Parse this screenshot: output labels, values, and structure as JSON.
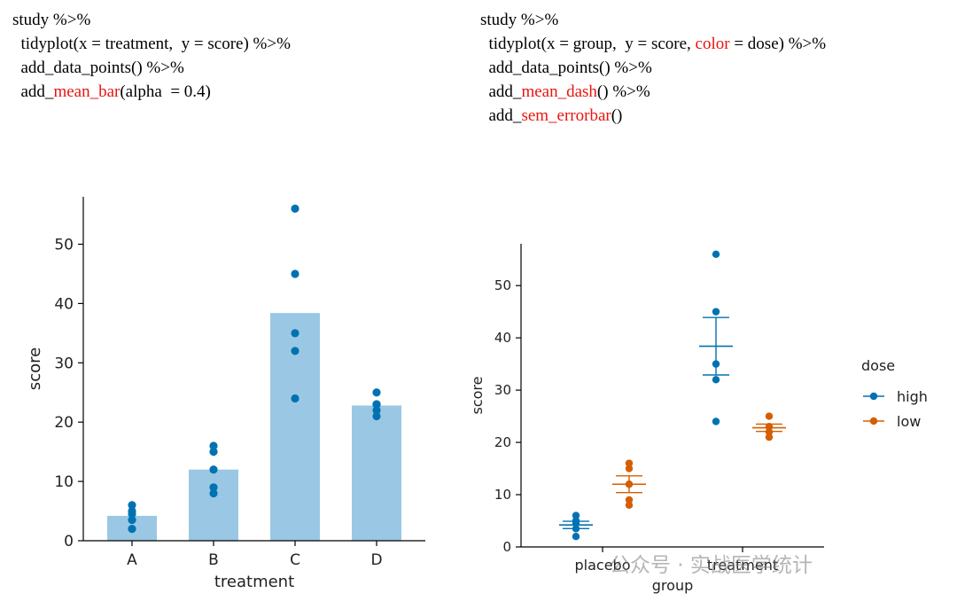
{
  "code_left": {
    "lines": [
      [
        {
          "t": "study %>%"
        }
      ],
      [
        {
          "t": "  tidyplot(x = treatment,  y = score) %>%"
        }
      ],
      [
        {
          "t": "  add_data_points() %>%"
        }
      ],
      [
        {
          "t": "  add_"
        },
        {
          "t": "mean_bar",
          "hl": true
        },
        {
          "t": "(alpha  = 0.4)"
        }
      ]
    ]
  },
  "code_right": {
    "lines": [
      [
        {
          "t": "study %>%"
        }
      ],
      [
        {
          "t": "  tidyplot(x = group,  y = score, "
        },
        {
          "t": "color",
          "hl": true
        },
        {
          "t": " = dose) %>%"
        }
      ],
      [
        {
          "t": "  add_data_points() %>%"
        }
      ],
      [
        {
          "t": "  add_"
        },
        {
          "t": "mean_dash",
          "hl": true
        },
        {
          "t": "() %>%"
        }
      ],
      [
        {
          "t": "  add_"
        },
        {
          "t": "sem_errorbar",
          "hl": true
        },
        {
          "t": "()"
        }
      ]
    ]
  },
  "colors": {
    "high": "#0072b2",
    "low": "#d55e00",
    "bar_fill": "#9ac8e4",
    "code_highlight": "#e8140f"
  },
  "watermark": {
    "text": "公众号 · 实战医学统计"
  },
  "chart_data": [
    {
      "type": "bar",
      "xlabel": "treatment",
      "ylabel": "score",
      "ylim": [
        0,
        58
      ],
      "yticks": [
        0,
        10,
        20,
        30,
        40,
        50
      ],
      "categories": [
        "A",
        "B",
        "C",
        "D"
      ],
      "values": [
        4.2,
        12,
        38.4,
        22.8
      ],
      "points": [
        [
          2,
          3.5,
          4.5,
          5,
          6
        ],
        [
          8,
          9,
          12,
          15,
          16
        ],
        [
          24,
          32,
          35,
          45,
          56
        ],
        [
          21,
          22,
          23,
          23,
          25
        ]
      ]
    },
    {
      "type": "scatter",
      "xlabel": "group",
      "ylabel": "score",
      "ylim": [
        0,
        58
      ],
      "yticks": [
        0,
        10,
        20,
        30,
        40,
        50
      ],
      "categories": [
        "placebo",
        "treatment"
      ],
      "legend": {
        "title": "dose",
        "position": "right"
      },
      "series": [
        {
          "name": "high",
          "groups": [
            {
              "group": "placebo",
              "points": [
                2,
                3.5,
                4.5,
                5,
                6
              ],
              "mean": 4.2,
              "sem": 0.7
            },
            {
              "group": "treatment",
              "points": [
                24,
                32,
                35,
                45,
                56
              ],
              "mean": 38.4,
              "sem": 5.5
            }
          ]
        },
        {
          "name": "low",
          "groups": [
            {
              "group": "placebo",
              "points": [
                8,
                9,
                12,
                15,
                16
              ],
              "mean": 12,
              "sem": 1.6
            },
            {
              "group": "treatment",
              "points": [
                21,
                22,
                23,
                23,
                25
              ],
              "mean": 22.8,
              "sem": 0.7
            }
          ]
        }
      ]
    }
  ]
}
